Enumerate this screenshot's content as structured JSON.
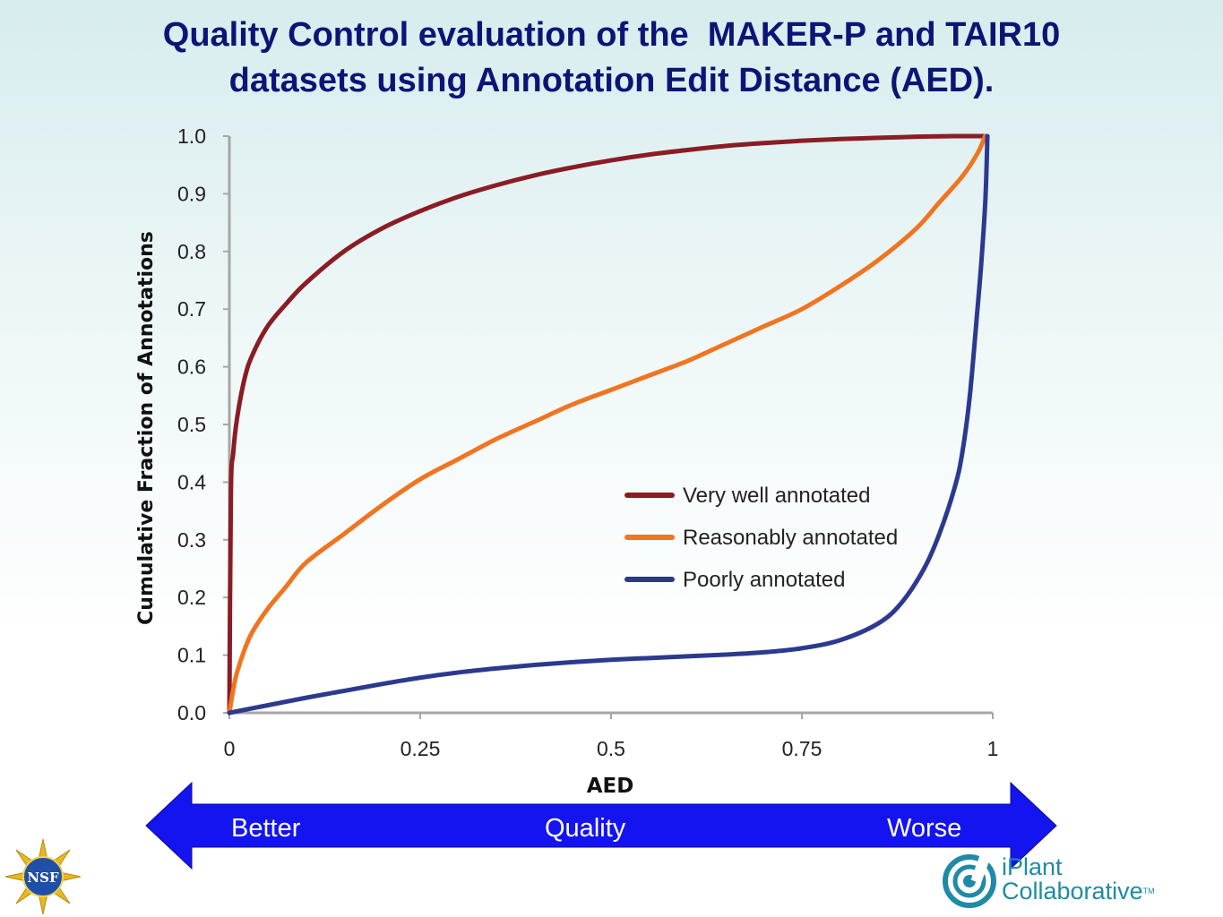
{
  "slide": {
    "title_line1": "Quality Control evaluation of the  MAKER-P and TAIR10",
    "title_line2": "datasets using Annotation Edit Distance (AED)."
  },
  "quality_arrow": {
    "left_label": "Better",
    "center_label": "Quality",
    "right_label": "Worse",
    "color": "#1414f0"
  },
  "logos": {
    "nsf_text": "NSF",
    "iplant_line1": "iPlant",
    "iplant_line2": "Collaborative",
    "iplant_tm": "TM"
  },
  "chart_data": {
    "type": "line",
    "title": "",
    "xlabel": "AED",
    "ylabel": "Cumulative Fraction of Annotations",
    "xlim": [
      0,
      1
    ],
    "ylim": [
      0,
      1.0
    ],
    "x_ticks": [
      "0",
      "0.25",
      "0.5",
      "0.75",
      "1"
    ],
    "x_tick_values": [
      0,
      0.25,
      0.5,
      0.75,
      1
    ],
    "y_ticks": [
      "0.0",
      "0.1",
      "0.2",
      "0.3",
      "0.4",
      "0.5",
      "0.6",
      "0.7",
      "0.8",
      "0.9",
      "1.0"
    ],
    "y_tick_values": [
      0,
      0.1,
      0.2,
      0.3,
      0.4,
      0.5,
      0.6,
      0.7,
      0.8,
      0.9,
      1.0
    ],
    "grid": false,
    "legend_position": "right",
    "series": [
      {
        "name": "Very well annotated",
        "color": "#8b1c24",
        "x": [
          0,
          0.002,
          0.005,
          0.01,
          0.02,
          0.03,
          0.05,
          0.075,
          0.1,
          0.15,
          0.2,
          0.25,
          0.3,
          0.35,
          0.4,
          0.45,
          0.5,
          0.55,
          0.6,
          0.65,
          0.7,
          0.75,
          0.8,
          0.85,
          0.9,
          0.95,
          0.99
        ],
        "y": [
          0,
          0.38,
          0.45,
          0.51,
          0.58,
          0.62,
          0.67,
          0.71,
          0.745,
          0.8,
          0.84,
          0.87,
          0.895,
          0.915,
          0.932,
          0.946,
          0.958,
          0.968,
          0.976,
          0.983,
          0.988,
          0.992,
          0.995,
          0.997,
          0.999,
          1.0,
          1.0
        ]
      },
      {
        "name": "Reasonably annotated",
        "color": "#f07521",
        "x": [
          0,
          0.005,
          0.01,
          0.02,
          0.03,
          0.05,
          0.075,
          0.1,
          0.15,
          0.2,
          0.25,
          0.3,
          0.35,
          0.4,
          0.45,
          0.5,
          0.55,
          0.6,
          0.65,
          0.7,
          0.75,
          0.8,
          0.85,
          0.9,
          0.93,
          0.96,
          0.98,
          0.99
        ],
        "y": [
          0,
          0.04,
          0.07,
          0.11,
          0.14,
          0.18,
          0.22,
          0.26,
          0.31,
          0.36,
          0.405,
          0.44,
          0.475,
          0.505,
          0.535,
          0.56,
          0.585,
          0.61,
          0.64,
          0.67,
          0.7,
          0.74,
          0.785,
          0.84,
          0.885,
          0.93,
          0.97,
          1.0
        ]
      },
      {
        "name": "Poorly annotated",
        "color": "#2b3990",
        "x": [
          0,
          0.05,
          0.1,
          0.15,
          0.2,
          0.25,
          0.3,
          0.35,
          0.4,
          0.45,
          0.5,
          0.55,
          0.6,
          0.65,
          0.7,
          0.75,
          0.8,
          0.85,
          0.88,
          0.91,
          0.93,
          0.95,
          0.96,
          0.97,
          0.98,
          0.985,
          0.99,
          0.992,
          0.993
        ],
        "y": [
          0,
          0.013,
          0.026,
          0.038,
          0.05,
          0.061,
          0.07,
          0.077,
          0.083,
          0.088,
          0.092,
          0.095,
          0.098,
          0.101,
          0.105,
          0.112,
          0.126,
          0.155,
          0.19,
          0.25,
          0.31,
          0.39,
          0.45,
          0.55,
          0.7,
          0.78,
          0.88,
          0.95,
          1.0
        ]
      }
    ]
  }
}
